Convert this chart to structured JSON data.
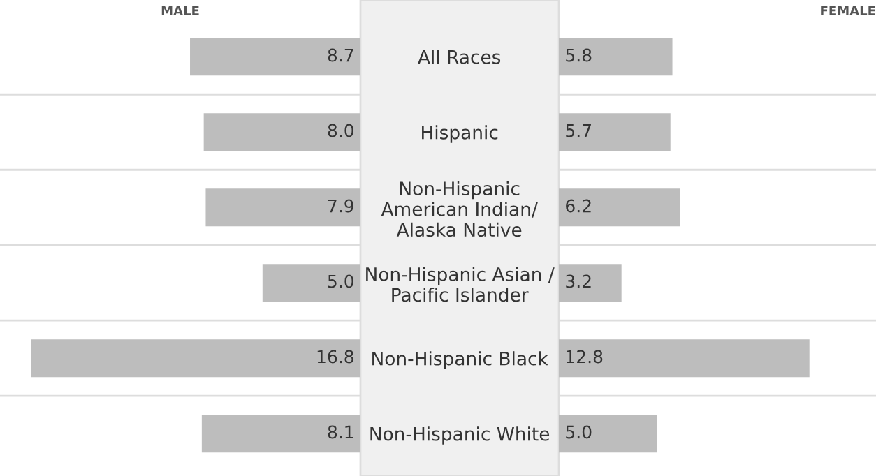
{
  "chart_data": [
    {
      "type": "bar",
      "orientation": "horizontal",
      "title": "MALE",
      "categories": [
        "All Races",
        "Hispanic",
        "Non-Hispanic\nAmerican Indian/\nAlaska Native",
        "Non-Hispanic Asian /\nPacific Islander",
        "Non-Hispanic Black",
        "Non-Hispanic White"
      ],
      "values": [
        8.7,
        8.0,
        7.9,
        5.0,
        16.8,
        8.1
      ],
      "value_labels": [
        "8.7",
        "8.0",
        "7.9",
        "5.0",
        "16.8",
        "8.1"
      ],
      "color": "#bdbdbd",
      "xlim": [
        18.4,
        0
      ],
      "grid": "y"
    },
    {
      "type": "bar",
      "orientation": "horizontal",
      "title": "FEMALE",
      "categories": [
        null,
        null,
        null,
        null,
        null,
        null
      ],
      "values": [
        5.8,
        5.7,
        6.2,
        3.2,
        12.8,
        5.0
      ],
      "value_labels": [
        "5.8",
        "5.7",
        "6.2",
        "3.2",
        "12.8",
        "5.0"
      ],
      "color": "#bdbdbd",
      "xlim": [
        0,
        16.2
      ],
      "grid": "y"
    }
  ]
}
